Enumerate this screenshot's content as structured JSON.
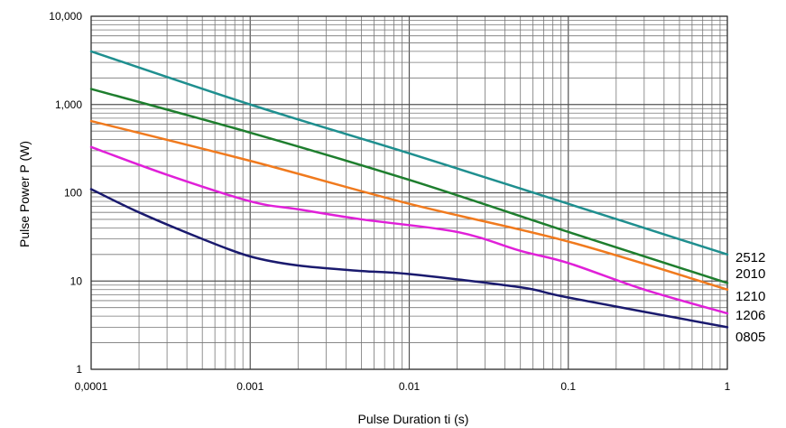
{
  "chart_data": {
    "type": "line",
    "xscale": "log",
    "yscale": "log",
    "xlim": [
      0.0001,
      1
    ],
    "ylim": [
      1,
      10000
    ],
    "grid": true,
    "xlabel": "Pulse Duration ti (s)",
    "ylabel": "Pulse Power P (W)",
    "x_ticks": [
      {
        "value": 0.0001,
        "label": "0,0001"
      },
      {
        "value": 0.001,
        "label": "0.001"
      },
      {
        "value": 0.01,
        "label": "0.01"
      },
      {
        "value": 0.1,
        "label": "0.1"
      },
      {
        "value": 1,
        "label": "1"
      }
    ],
    "y_ticks": [
      {
        "value": 1,
        "label": "1"
      },
      {
        "value": 10,
        "label": "10"
      },
      {
        "value": 100,
        "label": "100"
      },
      {
        "value": 1000,
        "label": "1,000"
      },
      {
        "value": 10000,
        "label": "10,000"
      }
    ],
    "series": [
      {
        "name": "2512",
        "color": "#1f8f8f",
        "points": [
          [
            0.0001,
            4000
          ],
          [
            0.001,
            1000
          ],
          [
            0.01,
            280
          ],
          [
            0.1,
            75
          ],
          [
            1,
            20
          ]
        ]
      },
      {
        "name": "2010",
        "color": "#1e7e2e",
        "points": [
          [
            0.0001,
            1500
          ],
          [
            0.001,
            480
          ],
          [
            0.01,
            140
          ],
          [
            0.1,
            36
          ],
          [
            1,
            9.5
          ]
        ]
      },
      {
        "name": "1210",
        "color": "#f07a1e",
        "points": [
          [
            0.0001,
            650
          ],
          [
            0.001,
            230
          ],
          [
            0.01,
            75
          ],
          [
            0.1,
            28
          ],
          [
            1,
            8
          ]
        ]
      },
      {
        "name": "1206",
        "color": "#e020d8",
        "points": [
          [
            0.0001,
            330
          ],
          [
            0.0003,
            160
          ],
          [
            0.001,
            80
          ],
          [
            0.002,
            65
          ],
          [
            0.005,
            50
          ],
          [
            0.02,
            36
          ],
          [
            0.05,
            22
          ],
          [
            0.1,
            16
          ],
          [
            0.3,
            8
          ],
          [
            1,
            4.3
          ]
        ]
      },
      {
        "name": "0805",
        "color": "#1a1a6e",
        "points": [
          [
            0.0001,
            110
          ],
          [
            0.0002,
            60
          ],
          [
            0.0005,
            30
          ],
          [
            0.001,
            19
          ],
          [
            0.002,
            15
          ],
          [
            0.005,
            13
          ],
          [
            0.01,
            12
          ],
          [
            0.05,
            8.5
          ],
          [
            0.1,
            6.5
          ],
          [
            1,
            3
          ]
        ]
      }
    ]
  }
}
